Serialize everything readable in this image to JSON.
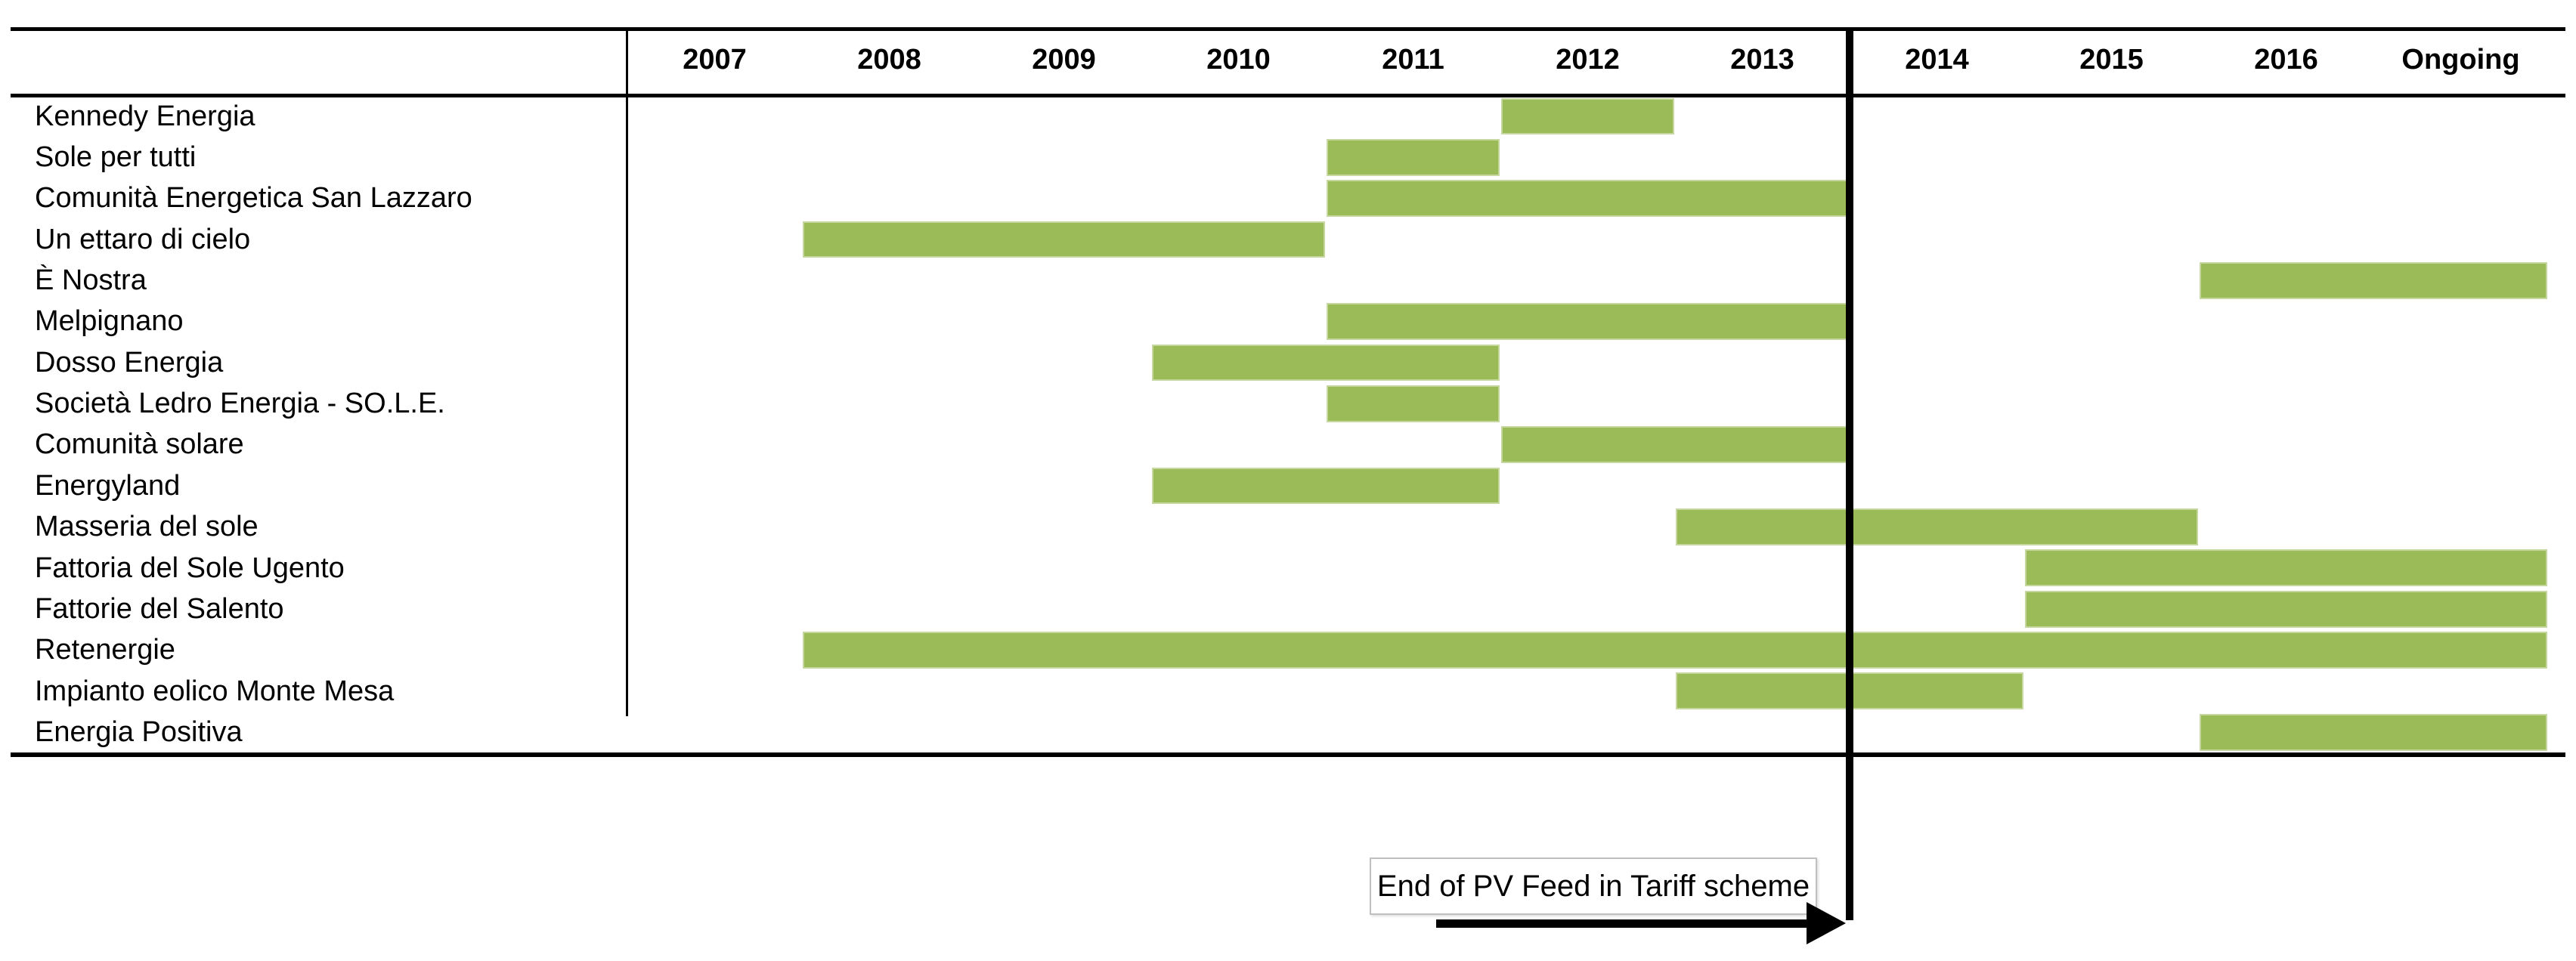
{
  "chart_data": {
    "type": "gantt",
    "x_categories": [
      "2007",
      "2008",
      "2009",
      "2010",
      "2011",
      "2012",
      "2013",
      "2014",
      "2015",
      "2016",
      "Ongoing"
    ],
    "x_start_year": 2007,
    "x_end_year": 2018,
    "grid": false,
    "legend": false,
    "rows": [
      {
        "label": "Kennedy Energia",
        "start": 2012,
        "end": 2013
      },
      {
        "label": "Sole per tutti",
        "start": 2011,
        "end": 2012
      },
      {
        "label": "Comunità Energetica San Lazzaro",
        "start": 2011,
        "end": 2014
      },
      {
        "label": "Un ettaro di cielo",
        "start": 2008,
        "end": 2011
      },
      {
        "label": "È Nostra",
        "start": 2016,
        "end": 2018
      },
      {
        "label": "Melpignano",
        "start": 2011,
        "end": 2014
      },
      {
        "label": "Dosso Energia",
        "start": 2010,
        "end": 2012
      },
      {
        "label": "Società Ledro Energia - SO.L.E.",
        "start": 2011,
        "end": 2012
      },
      {
        "label": "Comunità solare",
        "start": 2012,
        "end": 2014
      },
      {
        "label": "Energyland",
        "start": 2010,
        "end": 2012
      },
      {
        "label": "Masseria del sole",
        "start": 2013,
        "end": 2016
      },
      {
        "label": "Fattoria del Sole Ugento",
        "start": 2015,
        "end": 2018
      },
      {
        "label": "Fattorie del Salento",
        "start": 2015,
        "end": 2018
      },
      {
        "label": "Retenergie",
        "start": 2008,
        "end": 2018
      },
      {
        "label": "Impianto eolico Monte Mesa",
        "start": 2013,
        "end": 2015
      },
      {
        "label": "Energia Positiva",
        "start": 2016,
        "end": 2018
      }
    ],
    "marker": {
      "x_year": 2014,
      "label": "End of PV Feed in Tariff scheme"
    },
    "colors": {
      "bar": "#9bbb59",
      "bar_border": "#c6d89f",
      "marker_line": "#000000",
      "rules": "#000000",
      "annotation_border": "#bfbfbf",
      "background": "#ffffff"
    }
  }
}
